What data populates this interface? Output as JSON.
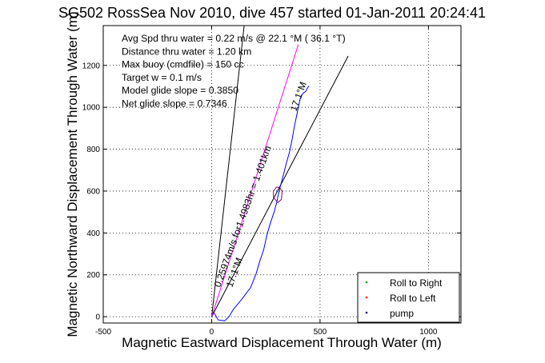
{
  "chart_data": {
    "type": "line",
    "title": "SG502 RossSea Nov 2010, dive 457 started 01-Jan-2011 20:24:41",
    "xlabel": "Magnetic Eastward Displacement Through Water (m)",
    "ylabel": "Magnetic Northward Displacement Through Water (m)",
    "xlim": [
      -500,
      1150
    ],
    "ylim": [
      -30,
      1390
    ],
    "xticks": [
      -500,
      0,
      500,
      1000
    ],
    "yticks": [
      0,
      200,
      400,
      600,
      800,
      1000,
      1200
    ],
    "grid": true,
    "annotations": [
      "Avg Spd thru water =  0.22 m/s @  22.1    °M ( 36.1 °T)",
      "Distance thru water =  1.20 km",
      "Max buoy (cmdfile) = 150 cc",
      "Target w = 0.1 m/s",
      "Model glide slope = 0.3850",
      "Net glide slope = 0.7346"
    ],
    "line_labels": [
      {
        "text": "0.25974m/s for1.4983hr = 1.401km",
        "angle_deg": 70
      },
      {
        "text": "17.1°M",
        "angle_deg": 70
      },
      {
        "text": "17.1°M",
        "angle_deg": 70
      }
    ],
    "legend": {
      "placement": "bottom-right",
      "entries": [
        {
          "label": "Roll to Right",
          "color": "#00a000",
          "marker": "dot"
        },
        {
          "label": "Roll to Left",
          "color": "#ff0000",
          "marker": "dot"
        },
        {
          "label": "pump",
          "color": "#000080",
          "marker": "dot"
        }
      ]
    },
    "series": [
      {
        "color": "#000000",
        "x": [
          0,
          150
        ],
        "y": [
          0,
          1390
        ]
      },
      {
        "color": "#000000",
        "x": [
          0,
          630
        ],
        "y": [
          0,
          1245
        ]
      },
      {
        "color": "#ff00ff",
        "x": [
          0,
          400
        ],
        "y": [
          0,
          1300
        ]
      },
      {
        "color": "#0000ff",
        "x": [
          10,
          30,
          60,
          80,
          100,
          140,
          180,
          205,
          222,
          240,
          255,
          272,
          288,
          300,
          308,
          316,
          328,
          344,
          360,
          372,
          382,
          392,
          400,
          408,
          416,
          425,
          433,
          441,
          447,
          450
        ],
        "y": [
          20,
          -15,
          -20,
          0,
          35,
          85,
          140,
          205,
          265,
          320,
          390,
          450,
          500,
          545,
          585,
          620,
          665,
          730,
          790,
          850,
          910,
          960,
          1000,
          1040,
          1060,
          1070,
          1075,
          1090,
          1100,
          1100
        ]
      },
      {
        "color": "#800080",
        "x": [
          300,
          285,
          285,
          305,
          322,
          325,
          315,
          300
        ],
        "y": [
          620,
          600,
          570,
          545,
          560,
          600,
          615,
          620
        ]
      }
    ]
  }
}
